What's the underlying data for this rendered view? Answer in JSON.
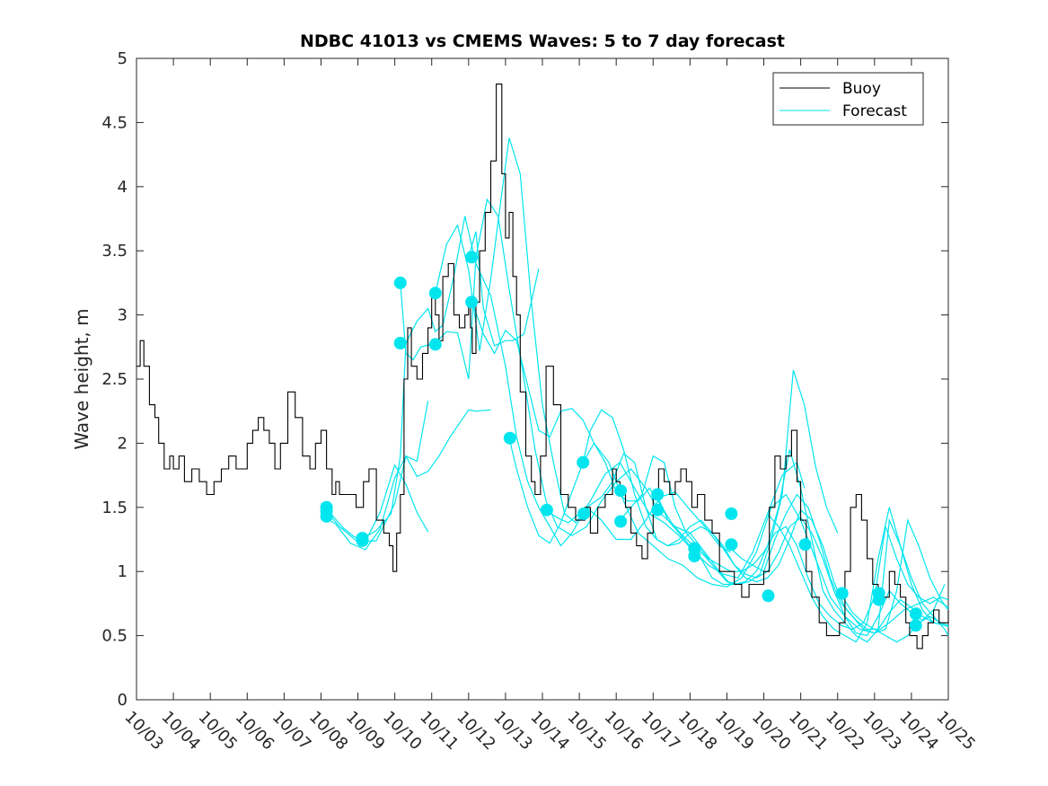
{
  "chart_data": {
    "type": "line",
    "title": "NDBC 41013 vs CMEMS Waves: 5 to 7 day forecast",
    "xlabel": "",
    "ylabel": "Wave height, m",
    "xlim": [
      0,
      22
    ],
    "ylim": [
      0,
      5
    ],
    "yticks": [
      0,
      0.5,
      1,
      1.5,
      2,
      2.5,
      3,
      3.5,
      4,
      4.5,
      5
    ],
    "ytick_labels": [
      "0",
      "0.5",
      "1",
      "1.5",
      "2",
      "2.5",
      "3",
      "3.5",
      "4",
      "4.5",
      "5"
    ],
    "xtick_labels": [
      "10/03",
      "10/04",
      "10/05",
      "10/06",
      "10/07",
      "10/08",
      "10/09",
      "10/10",
      "10/11",
      "10/12",
      "10/13",
      "10/14",
      "10/15",
      "10/16",
      "10/17",
      "10/18",
      "10/19",
      "10/20",
      "10/21",
      "10/22",
      "10/23",
      "10/24",
      "10/25"
    ],
    "grid": false,
    "legend": {
      "position": "top-right",
      "entries": [
        "Buoy",
        "Forecast"
      ]
    },
    "colors": {
      "buoy": "#000000",
      "forecast": "#00e5ee",
      "points": "#00e5ee",
      "axes": "#262626"
    },
    "buoy_series": {
      "name": "Buoy",
      "x": [
        0,
        0.1,
        0.2,
        0.35,
        0.5,
        0.6,
        0.75,
        0.9,
        1.0,
        1.15,
        1.3,
        1.5,
        1.7,
        1.9,
        2.1,
        2.3,
        2.5,
        2.7,
        2.9,
        3.0,
        3.15,
        3.3,
        3.45,
        3.6,
        3.75,
        3.9,
        4.1,
        4.3,
        4.5,
        4.7,
        4.85,
        5.0,
        5.15,
        5.3,
        5.4,
        5.5,
        5.6,
        5.8,
        5.95,
        6.05,
        6.15,
        6.3,
        6.5,
        6.7,
        6.85,
        6.95,
        7.05,
        7.15,
        7.25,
        7.35,
        7.45,
        7.6,
        7.75,
        7.9,
        8.0,
        8.1,
        8.2,
        8.3,
        8.45,
        8.6,
        8.75,
        8.9,
        9.0,
        9.05,
        9.1,
        9.2,
        9.3,
        9.45,
        9.6,
        9.75,
        9.9,
        10.0,
        10.1,
        10.2,
        10.3,
        10.4,
        10.55,
        10.7,
        10.8,
        10.95,
        11.1,
        11.3,
        11.5,
        11.7,
        11.9,
        12.05,
        12.15,
        12.3,
        12.5,
        12.7,
        12.9,
        13.0,
        13.1,
        13.25,
        13.4,
        13.55,
        13.7,
        13.85,
        14.0,
        14.15,
        14.3,
        14.45,
        14.6,
        14.75,
        14.9,
        15.05,
        15.2,
        15.4,
        15.6,
        15.8,
        16.0,
        16.2,
        16.4,
        16.6,
        16.8,
        17.0,
        17.15,
        17.3,
        17.45,
        17.6,
        17.75,
        17.9,
        18.0,
        18.15,
        18.3,
        18.5,
        18.7,
        18.9,
        19.05,
        19.2,
        19.35,
        19.5,
        19.65,
        19.8,
        19.95,
        20.1,
        20.25,
        20.4,
        20.55,
        20.7,
        20.85,
        20.95,
        21.05,
        21.15,
        21.3,
        21.45,
        21.6,
        21.75,
        21.9,
        22.0
      ],
      "values": [
        2.6,
        2.8,
        2.6,
        2.3,
        2.2,
        2.0,
        1.8,
        1.9,
        1.8,
        1.9,
        1.7,
        1.8,
        1.7,
        1.6,
        1.7,
        1.8,
        1.9,
        1.8,
        1.8,
        2.0,
        2.1,
        2.2,
        2.1,
        2.0,
        1.8,
        2.0,
        2.4,
        2.2,
        1.9,
        1.8,
        2.0,
        2.1,
        1.8,
        1.6,
        1.7,
        1.6,
        1.6,
        1.6,
        1.5,
        1.5,
        1.7,
        1.8,
        1.4,
        1.3,
        1.2,
        1.0,
        1.3,
        1.6,
        2.5,
        2.9,
        2.6,
        2.5,
        2.7,
        2.9,
        3.2,
        3.0,
        2.8,
        3.3,
        3.4,
        3.0,
        2.9,
        3.0,
        3.1,
        2.9,
        2.7,
        3.1,
        3.5,
        3.8,
        4.2,
        4.8,
        4.1,
        3.6,
        3.8,
        3.3,
        3.0,
        2.4,
        1.9,
        1.7,
        1.6,
        1.9,
        2.6,
        2.3,
        1.6,
        1.5,
        1.4,
        1.4,
        1.5,
        1.3,
        1.5,
        1.6,
        1.8,
        1.7,
        1.6,
        1.5,
        1.3,
        1.2,
        1.1,
        1.3,
        1.6,
        1.8,
        1.7,
        1.6,
        1.7,
        1.8,
        1.7,
        1.5,
        1.6,
        1.4,
        1.3,
        1.0,
        1.0,
        0.9,
        0.8,
        0.9,
        0.9,
        1.0,
        1.5,
        1.9,
        1.8,
        1.9,
        2.1,
        1.7,
        1.4,
        1.0,
        0.8,
        0.6,
        0.5,
        0.5,
        0.6,
        1.0,
        1.5,
        1.6,
        1.4,
        1.1,
        0.9,
        0.8,
        0.8,
        1.0,
        0.9,
        0.8,
        0.6,
        0.5,
        0.5,
        0.4,
        0.5,
        0.6,
        0.7,
        0.6,
        0.6,
        0.7
      ]
    },
    "forecast_series": [
      {
        "name": "Forecast",
        "x": [
          5.0,
          5.3,
          5.6,
          5.9,
          6.1,
          6.3,
          6.6,
          7.0,
          7.3,
          7.6,
          7.9
        ],
        "values": [
          1.53,
          1.44,
          1.34,
          1.27,
          1.25,
          1.29,
          1.46,
          1.83,
          1.68,
          1.46,
          1.31
        ]
      },
      {
        "name": "Forecast",
        "x": [
          5.0,
          5.4,
          5.8,
          6.2,
          6.6,
          7.0,
          7.3,
          7.6,
          7.9
        ],
        "values": [
          1.44,
          1.37,
          1.22,
          1.17,
          1.33,
          1.73,
          1.9,
          1.86,
          2.33
        ]
      },
      {
        "name": "Forecast",
        "x": [
          5.0,
          5.5,
          6.0,
          6.5,
          7.0,
          7.3,
          7.6,
          7.9,
          8.2,
          8.5,
          9.0,
          9.2,
          9.6
        ],
        "values": [
          1.52,
          1.35,
          1.23,
          1.24,
          1.53,
          1.9,
          1.74,
          1.78,
          1.9,
          2.05,
          2.26,
          2.25,
          2.26
        ]
      },
      {
        "name": "Forecast",
        "x": [
          6.1,
          6.5,
          6.9,
          7.15,
          7.3,
          7.6,
          7.9,
          8.1,
          8.3,
          8.6,
          8.9,
          9.2,
          9.6,
          10.0,
          10.3,
          10.6,
          10.9,
          11.2,
          11.5,
          11.8,
          12.2,
          12.6,
          13.0,
          13.4,
          13.8,
          14.2,
          14.6,
          15.0,
          15.4,
          15.8,
          16.1
        ],
        "values": [
          1.25,
          1.32,
          1.45,
          1.9,
          2.78,
          2.95,
          3.05,
          2.87,
          2.92,
          3.3,
          3.77,
          3.4,
          3.15,
          2.6,
          2.05,
          1.7,
          1.5,
          1.35,
          1.2,
          1.3,
          1.5,
          1.4,
          1.25,
          1.25,
          1.4,
          1.58,
          1.62,
          1.48,
          1.35,
          1.2,
          1.15
        ]
      },
      {
        "name": "Forecast",
        "x": [
          7.15,
          7.3,
          7.5,
          7.7,
          8.1,
          8.4,
          8.7,
          9.0,
          9.2,
          9.5,
          9.8,
          10.1,
          10.5,
          10.8,
          11.1,
          11.4,
          11.8,
          12.2,
          12.6,
          13.0,
          13.4,
          13.8,
          14.2,
          14.6,
          15.0,
          15.4,
          15.8,
          16.1
        ],
        "values": [
          3.25,
          2.7,
          2.65,
          2.75,
          2.78,
          2.87,
          2.86,
          2.5,
          3.45,
          3.9,
          3.77,
          3.2,
          2.5,
          1.95,
          1.55,
          1.35,
          1.28,
          1.35,
          1.55,
          1.7,
          1.8,
          1.65,
          1.45,
          1.35,
          1.3,
          1.15,
          1.0,
          0.9
        ]
      },
      {
        "name": "Forecast",
        "x": [
          8.1,
          8.4,
          8.7,
          9.0,
          9.3,
          9.6,
          9.9,
          10.1,
          10.4,
          10.7,
          11.0,
          11.3,
          11.6,
          11.9,
          12.3,
          12.7,
          13.1,
          13.5,
          13.9,
          14.3,
          14.7,
          15.1,
          15.5,
          15.9,
          16.3,
          16.7,
          17.1,
          17.5,
          17.9,
          18.1
        ],
        "values": [
          3.17,
          3.55,
          3.7,
          3.35,
          2.72,
          3.28,
          3.95,
          4.38,
          4.1,
          3.1,
          2.3,
          1.85,
          1.45,
          1.38,
          1.55,
          1.76,
          1.85,
          1.65,
          1.45,
          1.38,
          1.28,
          1.16,
          1.05,
          0.98,
          0.95,
          1.15,
          1.45,
          1.75,
          1.85,
          1.65
        ]
      },
      {
        "name": "Forecast",
        "x": [
          9.1,
          9.4,
          9.7,
          10.0,
          10.3,
          10.6,
          10.9,
          11.2,
          11.5,
          11.8,
          12.1,
          12.4,
          12.7,
          13.0,
          13.3,
          13.6,
          13.9,
          14.2,
          14.5,
          14.8,
          15.1,
          15.4,
          15.7,
          16.0,
          16.3,
          16.6,
          16.9,
          17.2,
          17.5,
          17.8,
          18.1,
          18.4,
          18.7,
          19.0
        ],
        "values": [
          3.1,
          2.85,
          2.7,
          2.88,
          2.8,
          2.45,
          2.1,
          2.05,
          2.25,
          2.27,
          2.18,
          2.0,
          1.85,
          1.62,
          1.55,
          1.55,
          1.65,
          1.52,
          1.38,
          1.28,
          1.2,
          1.12,
          1.02,
          0.92,
          0.9,
          0.92,
          0.98,
          1.25,
          1.6,
          2.57,
          2.3,
          1.82,
          1.5,
          1.3
        ]
      },
      {
        "name": "Forecast",
        "x": [
          9.0,
          9.2,
          9.4,
          9.7,
          10.0,
          10.2,
          10.5,
          10.9
        ],
        "values": [
          3.45,
          3.65,
          3.05,
          2.76,
          2.8,
          2.8,
          2.85,
          3.36
        ]
      },
      {
        "name": "Forecast",
        "x": [
          10.1,
          10.3,
          10.6,
          10.9,
          11.2,
          11.5,
          11.8,
          12.1,
          12.4,
          12.8,
          13.2,
          13.6,
          14.0,
          14.4,
          14.8,
          15.2,
          15.6,
          16.0,
          16.4,
          16.8,
          17.2,
          17.6,
          18.0,
          18.4,
          18.8,
          19.2,
          19.6,
          20.0,
          20.4,
          20.8,
          21.2,
          21.6,
          22.0
        ],
        "values": [
          2.04,
          1.8,
          1.5,
          1.28,
          1.22,
          1.38,
          1.62,
          1.85,
          2.0,
          1.85,
          1.55,
          1.3,
          1.2,
          1.1,
          1.05,
          0.95,
          0.9,
          0.88,
          0.95,
          1.15,
          1.5,
          1.6,
          1.4,
          1.1,
          0.8,
          0.65,
          0.55,
          0.52,
          0.6,
          0.7,
          0.75,
          0.8,
          0.72
        ]
      },
      {
        "name": "Forecast",
        "x": [
          11.1,
          11.4,
          11.7,
          12.0,
          12.3,
          12.6,
          12.9,
          13.2,
          13.5,
          13.8,
          14.1,
          14.4,
          14.7,
          15.0,
          15.3,
          15.6,
          15.9,
          16.2,
          16.5,
          16.8,
          17.1,
          17.4,
          17.7,
          18.0,
          18.3,
          18.6,
          18.9,
          19.2,
          19.5,
          19.8,
          20.1,
          20.4,
          20.7,
          21.0,
          21.3,
          21.6,
          21.9
        ],
        "values": [
          1.48,
          1.42,
          1.38,
          1.45,
          1.52,
          1.58,
          1.7,
          1.92,
          1.85,
          1.5,
          1.25,
          1.2,
          1.22,
          1.3,
          1.35,
          1.3,
          1.2,
          1.05,
          0.95,
          0.92,
          0.95,
          1.05,
          1.25,
          1.48,
          1.4,
          1.2,
          0.92,
          0.72,
          0.62,
          0.55,
          0.55,
          0.68,
          0.78,
          0.72,
          0.65,
          0.6,
          0.58
        ]
      },
      {
        "name": "Forecast",
        "x": [
          12.1,
          12.3,
          12.6,
          12.9,
          13.2,
          13.5,
          13.8,
          14.1,
          14.4,
          14.7,
          15.0,
          15.3,
          15.6,
          15.9,
          16.2,
          16.5,
          16.8,
          17.1,
          17.4,
          17.7,
          18.0,
          18.3,
          18.6,
          18.9,
          19.2,
          19.5,
          19.8,
          20.1,
          20.4,
          20.7,
          21.0,
          21.3,
          21.6,
          21.9
        ],
        "values": [
          1.85,
          2.1,
          2.26,
          2.2,
          1.95,
          1.6,
          1.35,
          1.25,
          1.2,
          1.25,
          1.35,
          1.4,
          1.3,
          1.18,
          1.05,
          0.98,
          0.95,
          1.0,
          1.15,
          1.35,
          1.42,
          1.3,
          1.1,
          0.85,
          0.65,
          0.52,
          0.5,
          0.65,
          0.85,
          0.75,
          0.68,
          0.62,
          0.7,
          0.9
        ]
      },
      {
        "name": "Forecast",
        "x": [
          13.1,
          13.4,
          13.7,
          14.0,
          14.3,
          14.6,
          14.9,
          15.2,
          15.5,
          15.8,
          16.1,
          16.4,
          16.7,
          17.0,
          17.3,
          17.6,
          17.9,
          18.2,
          18.5,
          18.8,
          19.1,
          19.4,
          19.7,
          20.0,
          20.3,
          20.6,
          20.9,
          21.2,
          21.5,
          21.8,
          22.0
        ],
        "values": [
          1.4,
          1.5,
          1.6,
          1.9,
          1.85,
          1.5,
          1.3,
          1.2,
          1.1,
          1.05,
          1.0,
          1.0,
          1.05,
          1.15,
          1.3,
          1.35,
          1.2,
          0.95,
          0.75,
          0.65,
          0.58,
          0.55,
          0.6,
          0.8,
          1.35,
          1.1,
          0.9,
          0.8,
          0.75,
          0.8,
          0.78
        ]
      },
      {
        "name": "Forecast",
        "x": [
          14.1,
          14.4,
          14.7,
          15.0,
          15.3,
          15.6,
          15.9,
          16.2,
          16.5,
          16.8,
          17.1,
          17.4,
          17.7,
          18.0,
          18.3,
          18.6,
          18.9,
          19.2,
          19.5,
          19.8,
          20.1,
          20.4,
          20.7,
          21.0,
          21.3,
          21.6,
          21.9,
          22.0
        ],
        "values": [
          1.6,
          1.4,
          1.3,
          1.2,
          1.1,
          0.95,
          0.9,
          0.9,
          0.92,
          1.0,
          1.2,
          1.5,
          1.95,
          1.65,
          1.25,
          0.85,
          0.7,
          0.6,
          0.5,
          0.45,
          0.55,
          1.4,
          1.2,
          0.95,
          0.75,
          0.65,
          0.55,
          0.5
        ]
      },
      {
        "name": "Forecast",
        "x": [
          16.1,
          16.4,
          16.7,
          17.0,
          17.3,
          17.6,
          17.9,
          18.2,
          18.5,
          18.8,
          19.1,
          19.4,
          19.7,
          20.0,
          20.3,
          20.6,
          20.9,
          21.2,
          21.5,
          21.8,
          22.0
        ],
        "values": [
          1.18,
          1.1,
          1.05,
          1.0,
          1.25,
          1.45,
          1.6,
          1.5,
          1.25,
          0.95,
          0.75,
          0.65,
          0.55,
          0.52,
          0.55,
          0.85,
          1.4,
          1.2,
          0.95,
          0.78,
          0.7
        ]
      },
      {
        "name": "Forecast",
        "x": [
          17.1,
          17.4,
          17.7,
          18.0,
          18.3,
          18.6,
          18.9,
          19.2,
          19.5,
          19.8,
          20.1,
          20.4,
          20.7,
          21.0,
          21.3,
          21.6,
          21.9,
          22.0
        ],
        "values": [
          1.45,
          1.35,
          1.2,
          1.0,
          0.8,
          0.65,
          0.55,
          0.5,
          0.45,
          0.6,
          1.1,
          1.5,
          1.2,
          0.9,
          0.7,
          0.6,
          0.58,
          0.57
        ]
      },
      {
        "name": "Forecast",
        "x": [
          19.1,
          19.4,
          19.7,
          20.0,
          20.3,
          20.6,
          20.9,
          21.2,
          21.5,
          21.8,
          22.0
        ],
        "values": [
          0.82,
          0.68,
          0.6,
          0.55,
          0.5,
          0.45,
          0.5,
          0.6,
          0.65,
          0.6,
          0.58
        ]
      }
    ],
    "points": {
      "x": [
        5.15,
        5.15,
        6.12,
        7.15,
        7.15,
        8.1,
        8.1,
        9.08,
        9.08,
        10.12,
        11.12,
        12.1,
        12.12,
        13.12,
        13.12,
        14.12,
        14.12,
        15.12,
        15.12,
        16.12,
        16.12,
        17.12,
        18.12,
        19.12,
        20.12,
        20.12,
        21.12,
        21.12,
        5.15,
        6.12,
        7.15
      ],
      "values": [
        1.5,
        1.43,
        1.26,
        3.25,
        2.78,
        3.17,
        2.77,
        3.45,
        3.1,
        2.04,
        1.48,
        1.85,
        1.45,
        1.63,
        1.39,
        1.6,
        1.48,
        1.18,
        1.12,
        1.21,
        1.45,
        0.81,
        1.21,
        0.83,
        0.83,
        0.78,
        0.67,
        0.58,
        1.47,
        1.24,
        2.78
      ]
    }
  }
}
